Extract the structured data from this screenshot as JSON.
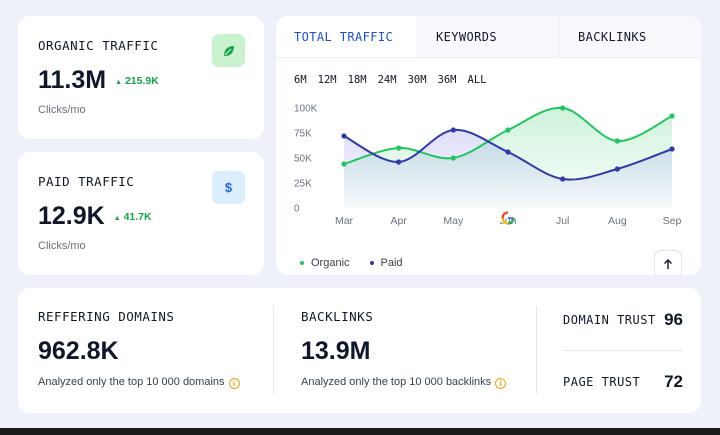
{
  "organic": {
    "label": "ORGANIC TRAFFIC",
    "value": "11.3M",
    "delta": "215.9K",
    "sub": "Clicks/mo",
    "icon": "leaf-icon",
    "badge_color": "#c9f2cf",
    "icon_color": "#16a34a"
  },
  "paid": {
    "label": "PAID TRAFFIC",
    "value": "12.9K",
    "delta": "41.7K",
    "sub": "Clicks/mo",
    "icon": "dollar-icon",
    "badge_color": "#dbeefe",
    "icon_color": "#2563eb",
    "icon_glyph": "$"
  },
  "tabs": [
    {
      "label": "TOTAL TRAFFIC",
      "active": true
    },
    {
      "label": "KEYWORDS",
      "active": false
    },
    {
      "label": "BACKLINKS",
      "active": false
    }
  ],
  "ranges": [
    "6M",
    "12M",
    "18M",
    "24M",
    "30M",
    "36M",
    "ALL"
  ],
  "chart_data": {
    "type": "area",
    "categories": [
      "Mar",
      "Apr",
      "May",
      "Jun",
      "Jul",
      "Aug",
      "Sep"
    ],
    "y_ticks": [
      "100K",
      "75K",
      "50K",
      "25K",
      "0"
    ],
    "ylim": [
      0,
      100
    ],
    "grid": false,
    "legend": "bottom-left",
    "series": [
      {
        "name": "Organic",
        "color": "#22c55e",
        "values": [
          44,
          60,
          50,
          78,
          100,
          67,
          92
        ]
      },
      {
        "name": "Paid",
        "color": "#2e3aa6",
        "values": [
          72,
          46,
          78,
          56,
          29,
          39,
          59
        ]
      }
    ],
    "annotation_icon": "google-icon"
  },
  "referring": {
    "label": "REFFERING DOMAINS",
    "value": "962.8K",
    "sub": "Analyzed only the top 10 000 domains"
  },
  "backlinks": {
    "label": "BACKLINKS",
    "value": "13.9M",
    "sub": "Analyzed only the top 10 000 backlinks"
  },
  "trust": [
    {
      "label": "DOMAIN TRUST",
      "value": "96"
    },
    {
      "label": "PAGE TRUST",
      "value": "72"
    }
  ],
  "info_glyph": "i"
}
